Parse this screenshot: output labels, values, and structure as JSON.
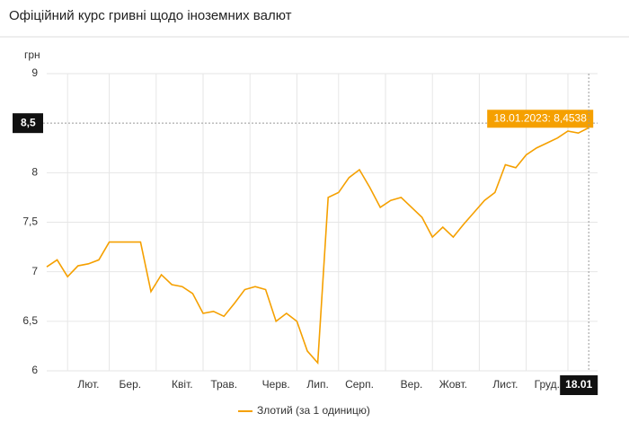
{
  "chart_data": {
    "type": "line",
    "title": "Офіційний курс гривні щодо іноземних валют",
    "y_label": "грн",
    "categories": [
      null,
      null,
      null,
      null,
      "Лют.",
      null,
      null,
      null,
      "Бер.",
      null,
      null,
      null,
      null,
      "Квіт.",
      null,
      null,
      null,
      "Трав.",
      null,
      null,
      null,
      null,
      "Черв.",
      null,
      null,
      null,
      "Лип.",
      null,
      null,
      null,
      "Серп.",
      null,
      null,
      null,
      null,
      "Вер.",
      null,
      null,
      null,
      "Жовт.",
      null,
      null,
      null,
      null,
      "Лист.",
      null,
      null,
      null,
      "Груд.",
      null,
      null,
      null,
      null
    ],
    "series": [
      {
        "name": "Злотий (за 1 одиницю)",
        "color": "#f5a000",
        "values": [
          7.05,
          7.12,
          6.95,
          7.06,
          7.08,
          7.12,
          7.3,
          7.3,
          7.3,
          7.3,
          6.8,
          6.97,
          6.87,
          6.85,
          6.78,
          6.58,
          6.6,
          6.55,
          6.68,
          6.82,
          6.85,
          6.82,
          6.5,
          6.58,
          6.5,
          6.2,
          6.08,
          7.75,
          7.8,
          7.95,
          8.03,
          7.85,
          7.65,
          7.72,
          7.75,
          7.65,
          7.55,
          7.35,
          7.45,
          7.35,
          7.48,
          7.6,
          7.72,
          7.8,
          8.08,
          8.05,
          8.18,
          8.25,
          8.3,
          8.35,
          8.42,
          8.4,
          8.4538
        ]
      }
    ],
    "ylim": [
      6,
      9
    ],
    "yticks": [
      6,
      {
        "value": 6.5,
        "label": "6,5"
      },
      7,
      {
        "value": 7.5,
        "label": "7,5"
      },
      8,
      {
        "value": 8.5,
        "label": "8,5"
      },
      9
    ],
    "grid": true,
    "highlight_ytick": 8.5,
    "tooltip": "18.01.2023: 8,4538",
    "crosshair_x_label": "18.01",
    "legend": "bottom"
  }
}
